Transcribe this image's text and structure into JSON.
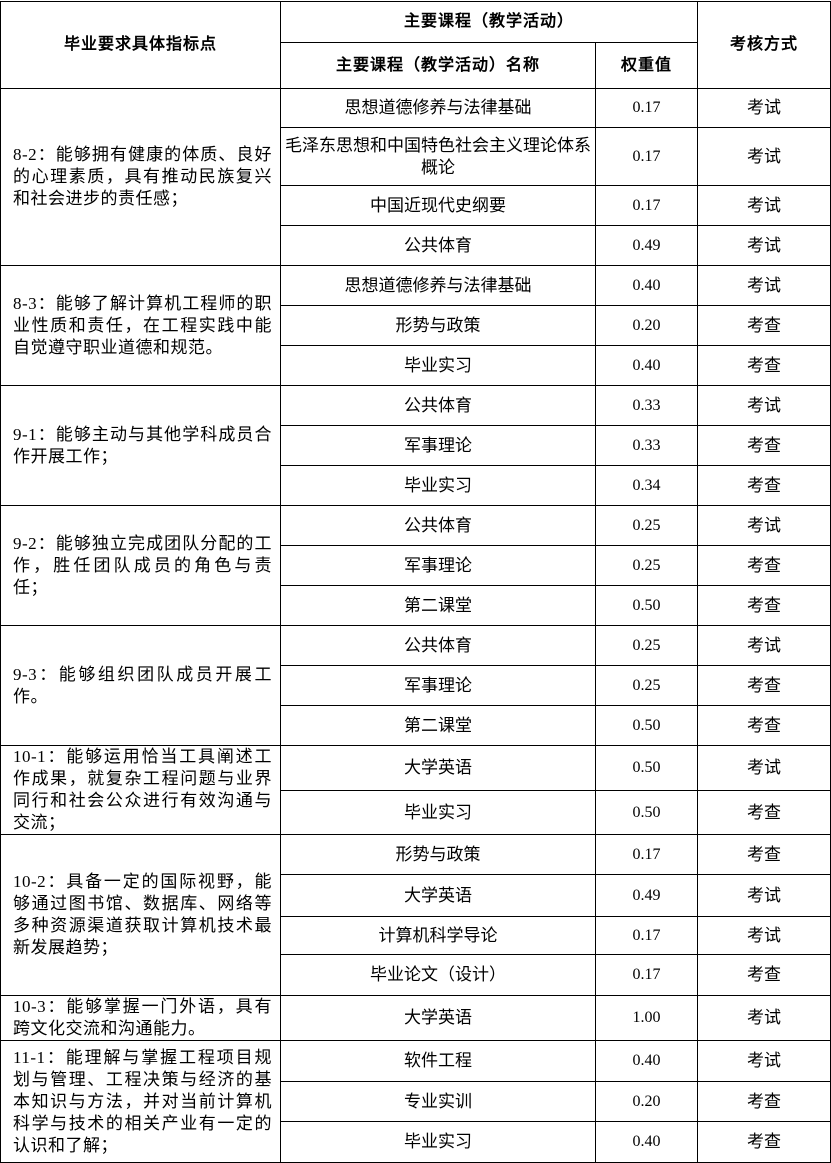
{
  "header": {
    "indicator": "毕业要求具体指标点",
    "course_group": "主要课程（教学活动）",
    "course_name": "主要课程（教学活动）名称",
    "weight": "权重值",
    "assessment": "考核方式"
  },
  "groups": [
    {
      "indicator": "8-2：能够拥有健康的体质、良好的心理素质，具有推动民族复兴和社会进步的责任感；",
      "courses": [
        {
          "name": "思想道德修养与法律基础",
          "weight": "0.17",
          "assessment": "考试"
        },
        {
          "name": "毛泽东思想和中国特色社会主义理论体系概论",
          "weight": "0.17",
          "assessment": "考试"
        },
        {
          "name": "中国近现代史纲要",
          "weight": "0.17",
          "assessment": "考试"
        },
        {
          "name": "公共体育",
          "weight": "0.49",
          "assessment": "考试"
        }
      ]
    },
    {
      "indicator": "8-3：能够了解计算机工程师的职业性质和责任，在工程实践中能自觉遵守职业道德和规范。",
      "courses": [
        {
          "name": "思想道德修养与法律基础",
          "weight": "0.40",
          "assessment": "考试"
        },
        {
          "name": "形势与政策",
          "weight": "0.20",
          "assessment": "考查"
        },
        {
          "name": "毕业实习",
          "weight": "0.40",
          "assessment": "考查"
        }
      ]
    },
    {
      "indicator": "9-1：能够主动与其他学科成员合作开展工作；",
      "courses": [
        {
          "name": "公共体育",
          "weight": "0.33",
          "assessment": "考试"
        },
        {
          "name": "军事理论",
          "weight": "0.33",
          "assessment": "考查"
        },
        {
          "name": "毕业实习",
          "weight": "0.34",
          "assessment": "考查"
        }
      ]
    },
    {
      "indicator": "9-2：能够独立完成团队分配的工作，胜任团队成员的角色与责任；",
      "courses": [
        {
          "name": "公共体育",
          "weight": "0.25",
          "assessment": "考试"
        },
        {
          "name": "军事理论",
          "weight": "0.25",
          "assessment": "考查"
        },
        {
          "name": "第二课堂",
          "weight": "0.50",
          "assessment": "考查"
        }
      ]
    },
    {
      "indicator": "9-3：能够组织团队成员开展工作。",
      "courses": [
        {
          "name": "公共体育",
          "weight": "0.25",
          "assessment": "考试"
        },
        {
          "name": "军事理论",
          "weight": "0.25",
          "assessment": "考查"
        },
        {
          "name": "第二课堂",
          "weight": "0.50",
          "assessment": "考查"
        }
      ]
    },
    {
      "indicator": "10-1：能够运用恰当工具阐述工作成果，就复杂工程问题与业界同行和社会公众进行有效沟通与交流；",
      "courses": [
        {
          "name": "大学英语",
          "weight": "0.50",
          "assessment": "考试"
        },
        {
          "name": "毕业实习",
          "weight": "0.50",
          "assessment": "考查"
        }
      ]
    },
    {
      "indicator": "10-2：具备一定的国际视野，能够通过图书馆、数据库、网络等多种资源渠道获取计算机技术最新发展趋势；",
      "courses": [
        {
          "name": "形势与政策",
          "weight": "0.17",
          "assessment": "考查"
        },
        {
          "name": "大学英语",
          "weight": "0.49",
          "assessment": "考试"
        },
        {
          "name": "计算机科学导论",
          "weight": "0.17",
          "assessment": "考试"
        },
        {
          "name": "毕业论文（设计）",
          "weight": "0.17",
          "assessment": "考查"
        }
      ]
    },
    {
      "indicator": "10-3：能够掌握一门外语，具有跨文化交流和沟通能力。",
      "courses": [
        {
          "name": "大学英语",
          "weight": "1.00",
          "assessment": "考试"
        }
      ]
    },
    {
      "indicator": "11-1：能理解与掌握工程项目规划与管理、工程决策与经济的基本知识与方法，并对当前计算机科学与技术的相关产业有一定的认识和了解；",
      "courses": [
        {
          "name": "软件工程",
          "weight": "0.40",
          "assessment": "考试"
        },
        {
          "name": "专业实训",
          "weight": "0.20",
          "assessment": "考查"
        },
        {
          "name": "毕业实习",
          "weight": "0.40",
          "assessment": "考查"
        }
      ]
    }
  ]
}
